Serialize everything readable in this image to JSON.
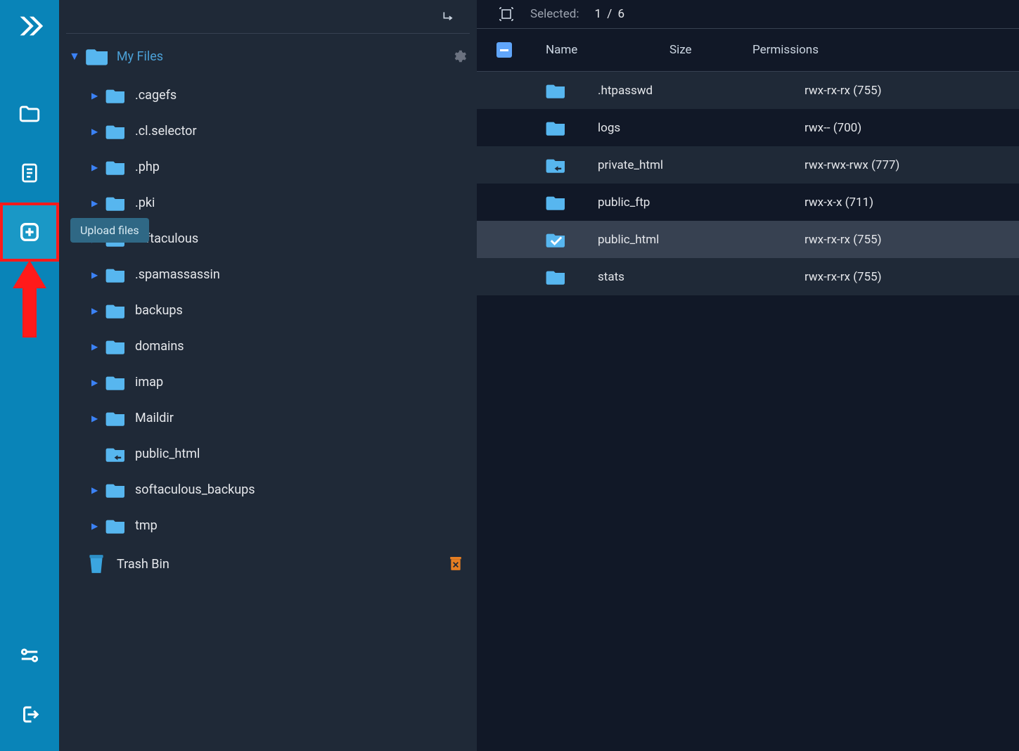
{
  "colors": {
    "rail": "#0984b8",
    "bg_dark": "#111827",
    "bg_mid": "#1f2937",
    "row_alt": "#1f2937",
    "row_sel": "#374151",
    "folder": "#57b6ef",
    "accent": "#3b82f6",
    "red": "#ff1a1a",
    "tooltip_bg": "#2f6885"
  },
  "tooltip": {
    "text": "Upload files"
  },
  "tree": {
    "root_label": "My Files",
    "trash_label": "Trash Bin",
    "items": [
      {
        "name": ".cagefs",
        "expandable": true,
        "linked": false
      },
      {
        "name": ".cl.selector",
        "expandable": true,
        "linked": false
      },
      {
        "name": ".php",
        "expandable": true,
        "linked": false
      },
      {
        "name": ".pki",
        "expandable": true,
        "linked": false
      },
      {
        "name": ".oftaculous",
        "expandable": true,
        "linked": false
      },
      {
        "name": ".spamassassin",
        "expandable": true,
        "linked": false
      },
      {
        "name": "backups",
        "expandable": true,
        "linked": false
      },
      {
        "name": "domains",
        "expandable": true,
        "linked": false
      },
      {
        "name": "imap",
        "expandable": true,
        "linked": false
      },
      {
        "name": "Maildir",
        "expandable": true,
        "linked": false
      },
      {
        "name": "public_html",
        "expandable": false,
        "linked": true
      },
      {
        "name": "softaculous_backups",
        "expandable": true,
        "linked": false
      },
      {
        "name": "tmp",
        "expandable": true,
        "linked": false
      }
    ]
  },
  "list": {
    "selected_label": "Selected:",
    "selected_count": "1 / 6",
    "columns": {
      "name": "Name",
      "size": "Size",
      "perm": "Permissions"
    },
    "rows": [
      {
        "name": ".htpasswd",
        "size": "",
        "perm": "rwx-rx-rx (755)",
        "linked": false,
        "alt": true,
        "selected": false
      },
      {
        "name": "logs",
        "size": "",
        "perm": "rwx-- (700)",
        "linked": false,
        "alt": false,
        "selected": false
      },
      {
        "name": "private_html",
        "size": "",
        "perm": "rwx-rwx-rwx (777)",
        "linked": true,
        "alt": true,
        "selected": false
      },
      {
        "name": "public_ftp",
        "size": "",
        "perm": "rwx-x-x (711)",
        "linked": false,
        "alt": false,
        "selected": false
      },
      {
        "name": "public_html",
        "size": "",
        "perm": "rwx-rx-rx (755)",
        "linked": false,
        "alt": false,
        "selected": true
      },
      {
        "name": "stats",
        "size": "",
        "perm": "rwx-rx-rx (755)",
        "linked": false,
        "alt": true,
        "selected": false
      }
    ]
  }
}
